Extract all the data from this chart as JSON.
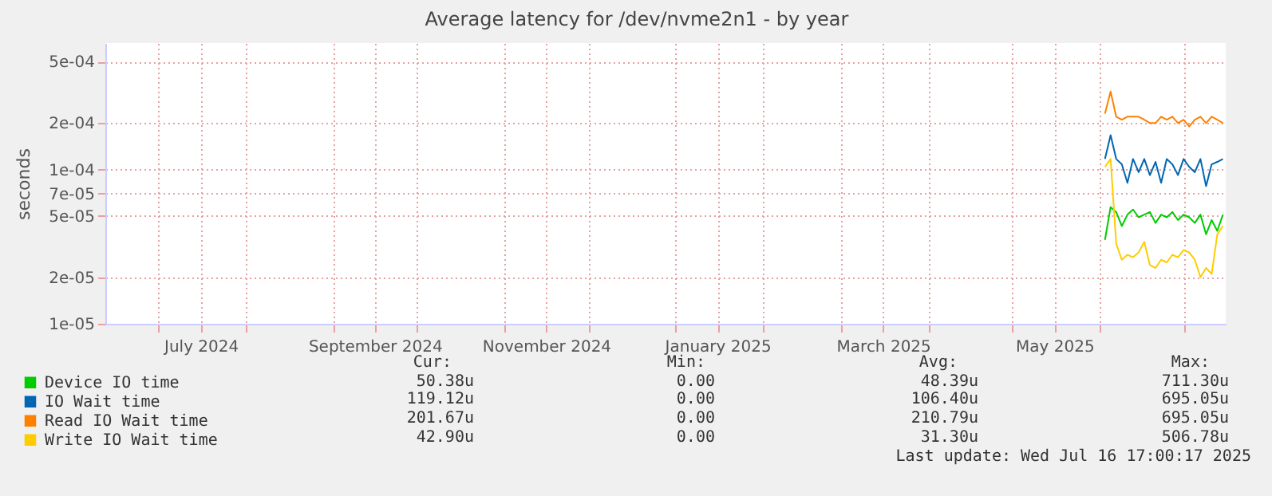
{
  "chart_data": {
    "type": "line",
    "title": "Average latency for /dev/nvme2n1 - by year",
    "ylabel": "seconds",
    "log": true,
    "grid": true,
    "legend": "bottom",
    "xlim": [
      "2024-06-12",
      "2025-07-16"
    ],
    "xticks": [
      {
        "value": "2024-07-01",
        "label": null
      },
      {
        "value": "2024-07-16",
        "label": "July 2024"
      },
      {
        "value": "2024-08-01",
        "label": null
      },
      {
        "value": "2024-09-01",
        "label": null
      },
      {
        "value": "2024-09-16",
        "label": "September 2024"
      },
      {
        "value": "2024-10-01",
        "label": null
      },
      {
        "value": "2024-11-01",
        "label": null
      },
      {
        "value": "2024-11-16",
        "label": "November 2024"
      },
      {
        "value": "2024-12-01",
        "label": null
      },
      {
        "value": "2025-01-01",
        "label": null
      },
      {
        "value": "2025-01-16",
        "label": "January 2025"
      },
      {
        "value": "2025-02-01",
        "label": null
      },
      {
        "value": "2025-03-01",
        "label": null
      },
      {
        "value": "2025-03-16",
        "label": "March 2025"
      },
      {
        "value": "2025-04-01",
        "label": null
      },
      {
        "value": "2025-05-01",
        "label": null
      },
      {
        "value": "2025-05-16",
        "label": "May 2025"
      },
      {
        "value": "2025-06-01",
        "label": null
      },
      {
        "value": "2025-07-01",
        "label": null
      }
    ],
    "ylim": [
      1e-05,
      0.00066
    ],
    "yticks": [
      {
        "value": 1e-05,
        "label": "1e-05"
      },
      {
        "value": 2e-05,
        "label": "2e-05"
      },
      {
        "value": 5e-05,
        "label": "5e-05"
      },
      {
        "value": 7e-05,
        "label": "7e-05"
      },
      {
        "value": 0.0001,
        "label": "1e-04"
      },
      {
        "value": 0.0002,
        "label": "2e-04"
      },
      {
        "value": 0.0005,
        "label": "5e-04"
      }
    ],
    "x": [
      "2025-06-03",
      "2025-06-05",
      "2025-06-07",
      "2025-06-09",
      "2025-06-11",
      "2025-06-13",
      "2025-06-15",
      "2025-06-17",
      "2025-06-19",
      "2025-06-21",
      "2025-06-23",
      "2025-06-25",
      "2025-06-27",
      "2025-06-29",
      "2025-07-01",
      "2025-07-03",
      "2025-07-05",
      "2025-07-07",
      "2025-07-09",
      "2025-07-11",
      "2025-07-13",
      "2025-07-15"
    ],
    "series": [
      {
        "name": "Device IO time",
        "color": "#00cc00",
        "values": [
          3.5e-05,
          5.7e-05,
          5.3e-05,
          4.3e-05,
          5.1e-05,
          5.5e-05,
          4.9e-05,
          5.1e-05,
          5.3e-05,
          4.5e-05,
          5.1e-05,
          4.9e-05,
          5.3e-05,
          4.7e-05,
          5.1e-05,
          4.9e-05,
          4.5e-05,
          5.1e-05,
          3.8e-05,
          4.7e-05,
          4e-05,
          5.1e-05
        ]
      },
      {
        "name": "IO Wait time",
        "color": "#0066b3",
        "values": [
          0.000117,
          0.000167,
          0.000117,
          0.000108,
          8.2e-05,
          0.000117,
          9.6e-05,
          0.000117,
          9.2e-05,
          0.000112,
          8.2e-05,
          0.000117,
          0.000108,
          9.2e-05,
          0.000117,
          0.000104,
          9.6e-05,
          0.000117,
          7.8e-05,
          0.000108,
          0.000112,
          0.000117
        ]
      },
      {
        "name": "Read IO Wait time",
        "color": "#ff8000",
        "values": [
          0.00023,
          0.00032,
          0.00022,
          0.00021,
          0.00022,
          0.00022,
          0.00022,
          0.00021,
          0.0002,
          0.0002,
          0.00022,
          0.00021,
          0.00022,
          0.0002,
          0.00021,
          0.00019,
          0.00021,
          0.00022,
          0.0002,
          0.00022,
          0.00021,
          0.0002
        ]
      },
      {
        "name": "Write IO Wait time",
        "color": "#ffcc00",
        "values": [
          0.000104,
          0.000117,
          3.3e-05,
          2.6e-05,
          2.8e-05,
          2.7e-05,
          2.9e-05,
          3.4e-05,
          2.4e-05,
          2.3e-05,
          2.6e-05,
          2.5e-05,
          2.8e-05,
          2.7e-05,
          3e-05,
          2.9e-05,
          2.6e-05,
          2e-05,
          2.3e-05,
          2.1e-05,
          3.8e-05,
          4.3e-05
        ]
      }
    ],
    "annotations": [
      "Cur:",
      "Min:",
      "Avg:",
      "Max:",
      "50.38u",
      "0.00",
      "48.39u",
      "711.30u",
      "119.12u",
      "0.00",
      "106.40u",
      "695.05u",
      "201.67u",
      "0.00",
      "210.79u",
      "695.05u",
      "42.90u",
      "0.00",
      "31.30u",
      "506.78u",
      "Last update: Wed Jul 16 17:00:17 2025"
    ]
  }
}
